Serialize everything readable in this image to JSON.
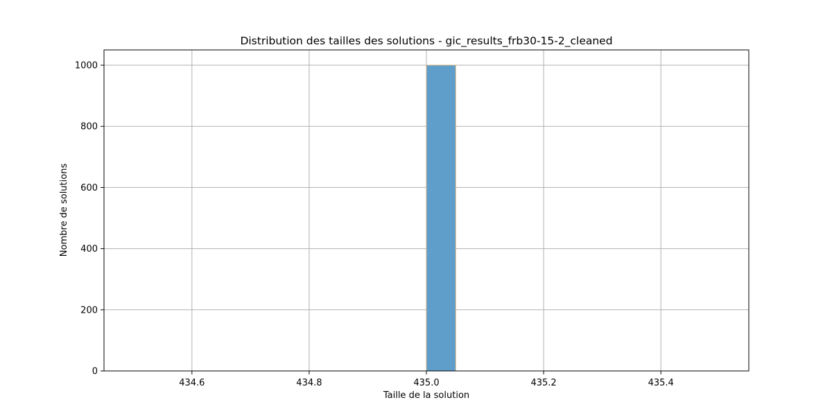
{
  "chart_data": {
    "type": "bar",
    "title": "Distribution des tailles des solutions - gic_results_frb30-15-2_cleaned",
    "xlabel": "Taille de la solution",
    "ylabel": "Nombre de solutions",
    "xlim": [
      434.45,
      435.55
    ],
    "ylim": [
      0,
      1050
    ],
    "xticks": [
      434.6,
      434.8,
      435.0,
      435.2,
      435.4
    ],
    "xtick_labels": [
      "434.6",
      "434.8",
      "435.0",
      "435.2",
      "435.4"
    ],
    "yticks": [
      0,
      200,
      400,
      600,
      800,
      1000
    ],
    "ytick_labels": [
      "0",
      "200",
      "400",
      "600",
      "800",
      "1000"
    ],
    "bins": [
      {
        "x0": 435.0,
        "x1": 435.05,
        "value": 1000
      }
    ],
    "grid": true,
    "legend": "none",
    "bar_color": "#5f9ecb",
    "bar_edge_color": "#e0b36a"
  }
}
